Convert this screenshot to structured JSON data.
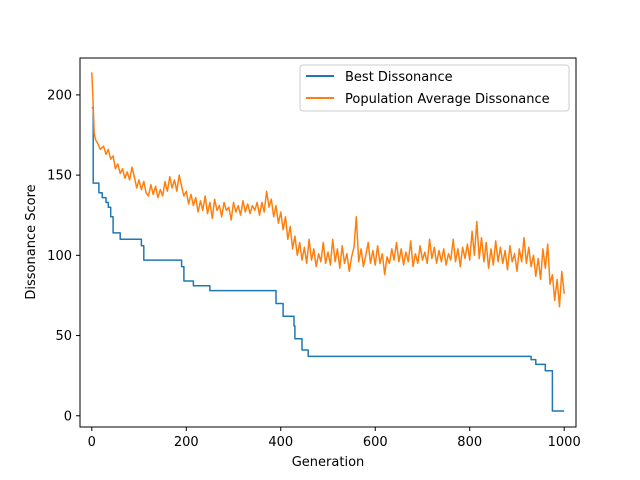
{
  "chart_data": {
    "type": "line",
    "title": "",
    "xlabel": "Generation",
    "ylabel": "Dissonance Score",
    "xlim": [
      -25,
      1025
    ],
    "ylim": [
      -7,
      223
    ],
    "x_ticks": [
      0,
      200,
      400,
      600,
      800,
      1000
    ],
    "x_tick_labels": [
      "0",
      "200",
      "400",
      "600",
      "800",
      "1000"
    ],
    "y_ticks": [
      0,
      50,
      100,
      150,
      200
    ],
    "y_tick_labels": [
      "0",
      "50",
      "100",
      "150",
      "200"
    ],
    "grid": false,
    "legend": "top-right",
    "series": [
      {
        "name": "Best Dissonance",
        "color": "#1f77b4",
        "step": true,
        "points": [
          [
            0,
            192
          ],
          [
            3,
            145
          ],
          [
            15,
            139
          ],
          [
            22,
            136
          ],
          [
            30,
            133
          ],
          [
            35,
            130
          ],
          [
            40,
            124
          ],
          [
            45,
            114
          ],
          [
            60,
            110
          ],
          [
            105,
            106
          ],
          [
            110,
            97
          ],
          [
            190,
            93
          ],
          [
            195,
            84
          ],
          [
            215,
            81
          ],
          [
            250,
            78
          ],
          [
            390,
            70
          ],
          [
            405,
            62
          ],
          [
            428,
            56
          ],
          [
            430,
            48
          ],
          [
            445,
            41
          ],
          [
            458,
            37
          ],
          [
            920,
            37
          ],
          [
            930,
            35
          ],
          [
            940,
            32
          ],
          [
            960,
            28
          ],
          [
            975,
            3
          ],
          [
            1000,
            3
          ]
        ]
      },
      {
        "name": "Population Average Dissonance",
        "color": "#ff7f0e",
        "step": false,
        "points": [
          [
            0,
            214
          ],
          [
            2,
            200
          ],
          [
            5,
            176
          ],
          [
            8,
            172
          ],
          [
            12,
            170
          ],
          [
            18,
            166
          ],
          [
            25,
            168
          ],
          [
            30,
            163
          ],
          [
            35,
            166
          ],
          [
            40,
            160
          ],
          [
            45,
            162
          ],
          [
            50,
            154
          ],
          [
            55,
            157
          ],
          [
            60,
            151
          ],
          [
            65,
            154
          ],
          [
            70,
            148
          ],
          [
            75,
            152
          ],
          [
            80,
            147
          ],
          [
            85,
            155
          ],
          [
            90,
            149
          ],
          [
            95,
            142
          ],
          [
            100,
            147
          ],
          [
            105,
            141
          ],
          [
            110,
            146
          ],
          [
            115,
            139
          ],
          [
            120,
            137
          ],
          [
            125,
            144
          ],
          [
            130,
            138
          ],
          [
            135,
            143
          ],
          [
            140,
            136
          ],
          [
            145,
            141
          ],
          [
            150,
            137
          ],
          [
            155,
            146
          ],
          [
            160,
            140
          ],
          [
            165,
            149
          ],
          [
            170,
            142
          ],
          [
            175,
            147
          ],
          [
            180,
            140
          ],
          [
            185,
            150
          ],
          [
            190,
            143
          ],
          [
            195,
            137
          ],
          [
            200,
            140
          ],
          [
            205,
            132
          ],
          [
            210,
            138
          ],
          [
            215,
            131
          ],
          [
            220,
            136
          ],
          [
            225,
            127
          ],
          [
            230,
            134
          ],
          [
            235,
            128
          ],
          [
            240,
            137
          ],
          [
            245,
            126
          ],
          [
            250,
            133
          ],
          [
            255,
            123
          ],
          [
            260,
            135
          ],
          [
            265,
            128
          ],
          [
            270,
            131
          ],
          [
            275,
            124
          ],
          [
            280,
            133
          ],
          [
            285,
            128
          ],
          [
            290,
            130
          ],
          [
            295,
            122
          ],
          [
            300,
            133
          ],
          [
            305,
            127
          ],
          [
            310,
            131
          ],
          [
            315,
            125
          ],
          [
            320,
            134
          ],
          [
            325,
            127
          ],
          [
            330,
            132
          ],
          [
            335,
            126
          ],
          [
            340,
            131
          ],
          [
            345,
            128
          ],
          [
            350,
            133
          ],
          [
            355,
            125
          ],
          [
            360,
            133
          ],
          [
            365,
            127
          ],
          [
            370,
            140
          ],
          [
            375,
            130
          ],
          [
            380,
            135
          ],
          [
            385,
            124
          ],
          [
            390,
            131
          ],
          [
            395,
            120
          ],
          [
            400,
            127
          ],
          [
            405,
            116
          ],
          [
            410,
            124
          ],
          [
            415,
            110
          ],
          [
            420,
            118
          ],
          [
            425,
            104
          ],
          [
            430,
            112
          ],
          [
            435,
            100
          ],
          [
            440,
            108
          ],
          [
            445,
            97
          ],
          [
            450,
            105
          ],
          [
            455,
            95
          ],
          [
            460,
            110
          ],
          [
            465,
            97
          ],
          [
            470,
            104
          ],
          [
            475,
            93
          ],
          [
            480,
            101
          ],
          [
            485,
            96
          ],
          [
            490,
            108
          ],
          [
            495,
            95
          ],
          [
            500,
            102
          ],
          [
            505,
            94
          ],
          [
            510,
            110
          ],
          [
            515,
            96
          ],
          [
            520,
            104
          ],
          [
            525,
            92
          ],
          [
            530,
            106
          ],
          [
            535,
            95
          ],
          [
            540,
            101
          ],
          [
            545,
            90
          ],
          [
            550,
            99
          ],
          [
            555,
            105
          ],
          [
            560,
            124
          ],
          [
            565,
            96
          ],
          [
            570,
            104
          ],
          [
            575,
            93
          ],
          [
            580,
            100
          ],
          [
            585,
            108
          ],
          [
            590,
            95
          ],
          [
            595,
            103
          ],
          [
            600,
            94
          ],
          [
            605,
            106
          ],
          [
            610,
            95
          ],
          [
            615,
            101
          ],
          [
            620,
            88
          ],
          [
            625,
            99
          ],
          [
            630,
            95
          ],
          [
            635,
            104
          ],
          [
            640,
            97
          ],
          [
            645,
            108
          ],
          [
            650,
            96
          ],
          [
            655,
            104
          ],
          [
            660,
            94
          ],
          [
            665,
            102
          ],
          [
            670,
            96
          ],
          [
            675,
            109
          ],
          [
            680,
            93
          ],
          [
            685,
            101
          ],
          [
            690,
            95
          ],
          [
            695,
            106
          ],
          [
            700,
            97
          ],
          [
            705,
            102
          ],
          [
            710,
            95
          ],
          [
            715,
            110
          ],
          [
            720,
            98
          ],
          [
            725,
            105
          ],
          [
            730,
            95
          ],
          [
            735,
            103
          ],
          [
            740,
            96
          ],
          [
            745,
            104
          ],
          [
            750,
            94
          ],
          [
            755,
            101
          ],
          [
            760,
            97
          ],
          [
            765,
            110
          ],
          [
            770,
            96
          ],
          [
            775,
            104
          ],
          [
            780,
            93
          ],
          [
            785,
            105
          ],
          [
            790,
            98
          ],
          [
            795,
            107
          ],
          [
            800,
            97
          ],
          [
            805,
            115
          ],
          [
            810,
            100
          ],
          [
            815,
            121
          ],
          [
            820,
            98
          ],
          [
            825,
            111
          ],
          [
            830,
            96
          ],
          [
            835,
            108
          ],
          [
            840,
            92
          ],
          [
            845,
            104
          ],
          [
            850,
            94
          ],
          [
            855,
            109
          ],
          [
            860,
            96
          ],
          [
            865,
            105
          ],
          [
            870,
            95
          ],
          [
            875,
            103
          ],
          [
            880,
            91
          ],
          [
            885,
            106
          ],
          [
            890,
            96
          ],
          [
            895,
            101
          ],
          [
            900,
            90
          ],
          [
            905,
            104
          ],
          [
            910,
            96
          ],
          [
            915,
            111
          ],
          [
            920,
            95
          ],
          [
            925,
            105
          ],
          [
            930,
            93
          ],
          [
            935,
            100
          ],
          [
            940,
            87
          ],
          [
            945,
            98
          ],
          [
            950,
            85
          ],
          [
            955,
            104
          ],
          [
            960,
            92
          ],
          [
            965,
            107
          ],
          [
            970,
            82
          ],
          [
            975,
            88
          ],
          [
            980,
            72
          ],
          [
            985,
            85
          ],
          [
            990,
            68
          ],
          [
            995,
            90
          ],
          [
            1000,
            76
          ]
        ]
      }
    ]
  }
}
